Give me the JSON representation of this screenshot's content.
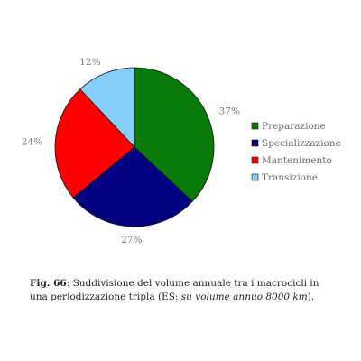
{
  "chart_data": {
    "type": "pie",
    "categories": [
      "Preparazione",
      "Specializzazione",
      "Mantenimento",
      "Transizione"
    ],
    "values": [
      37,
      27,
      24,
      12
    ],
    "value_labels": [
      "37%",
      "27%",
      "24%",
      "12%"
    ],
    "colors": [
      "#0a7a0a",
      "#000080",
      "#ff0000",
      "#87cefa"
    ],
    "legend_position": "right"
  },
  "caption": {
    "label": "Fig. 66",
    "text": ": Suddivisione del volume annuale tra i macrocicli in una periodizzazione tripla (ES: ",
    "italic": "su volume annuo 8000 km",
    "end": ")."
  }
}
